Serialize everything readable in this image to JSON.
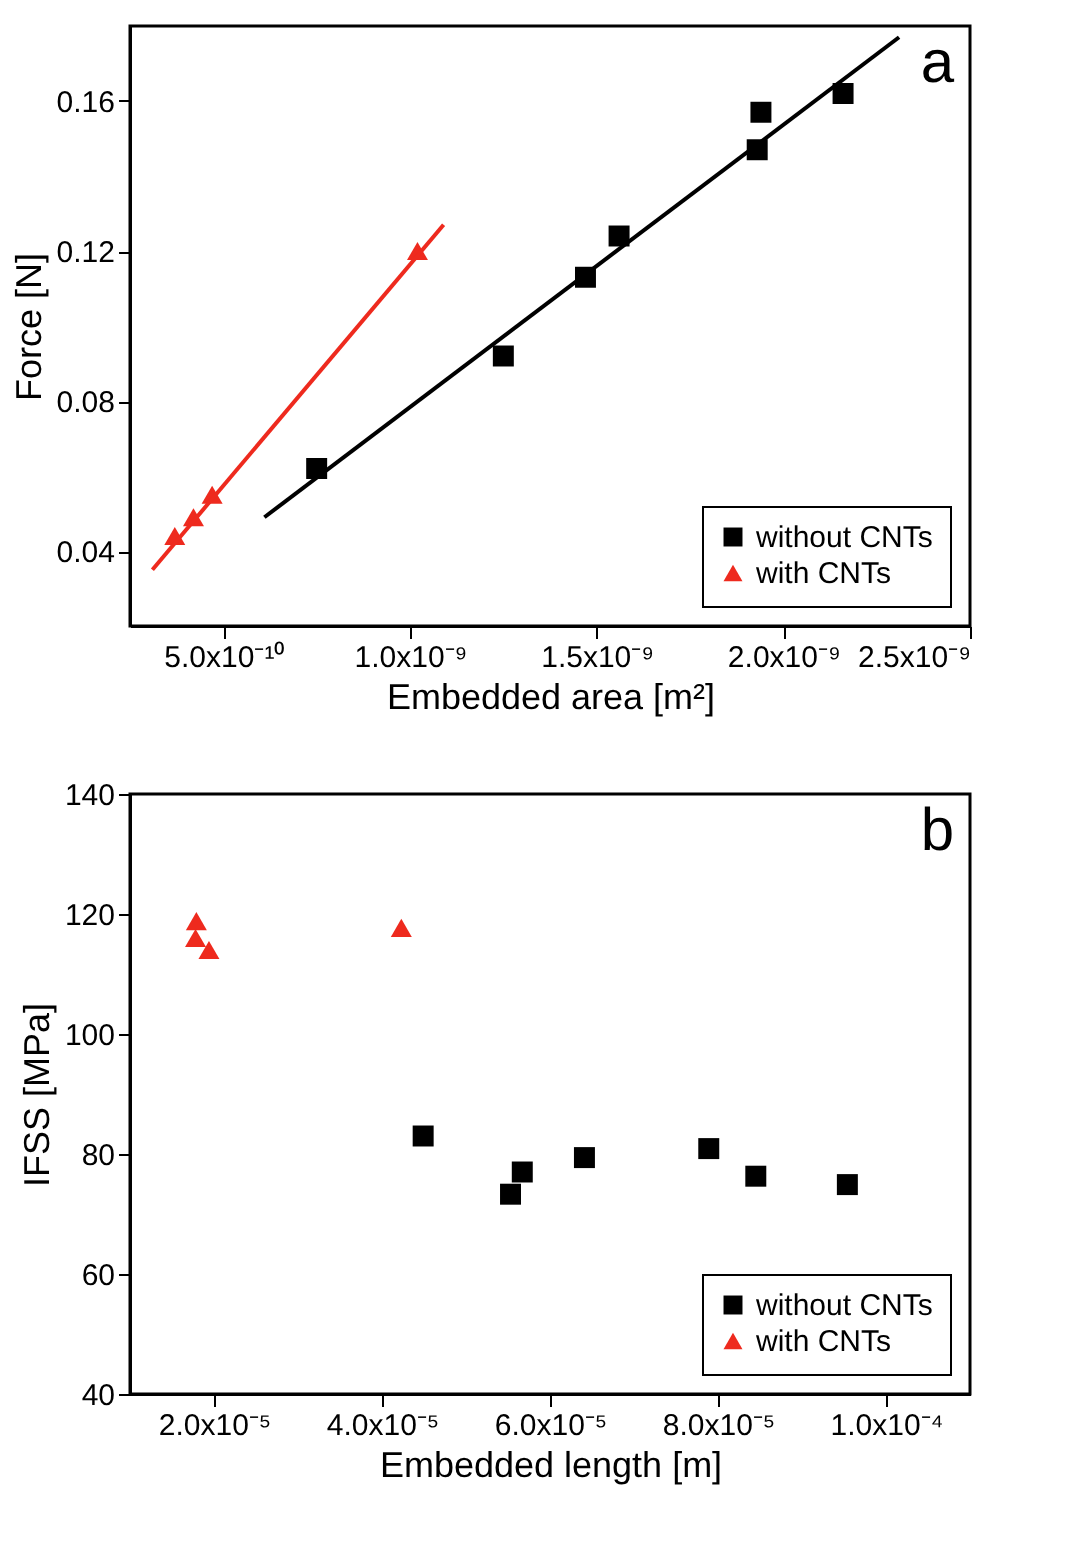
{
  "chart_data": [
    {
      "type": "scatter",
      "xlabel": "Embedded area [m²]",
      "ylabel": "Force [N]",
      "annotations": [
        "a"
      ],
      "legend": "bottom right",
      "grid": false,
      "xlim": [
        2.5e-10,
        2.5e-09
      ],
      "xticks": [
        {
          "value": 5e-10,
          "label": "5.0x10⁻¹⁰"
        },
        {
          "value": 1e-09,
          "label": "1.0x10⁻⁹"
        },
        {
          "value": 1.5e-09,
          "label": "1.5x10⁻⁹"
        },
        {
          "value": 2e-09,
          "label": "2.0x10⁻⁹"
        },
        {
          "value": 2.5e-09,
          "label": "2.5x10⁻⁹"
        }
      ],
      "ylim": [
        0.02,
        0.18
      ],
      "yticks": [
        0.04,
        0.08,
        0.12,
        0.16
      ],
      "series": [
        {
          "name": "without CNTs",
          "marker": "square",
          "color": "#000000",
          "x": [
            7.5e-10,
            1.25e-09,
            1.47e-09,
            1.56e-09,
            1.93e-09,
            1.94e-09,
            2.16e-09
          ],
          "values": [
            0.062,
            0.092,
            0.113,
            0.124,
            0.147,
            0.157,
            0.162
          ]
        },
        {
          "name": "with CNTs",
          "marker": "triangle",
          "color": "#ee2a1e",
          "x": [
            3.7e-10,
            4.2e-10,
            4.7e-10,
            1.02e-09
          ],
          "values": [
            0.044,
            0.049,
            0.055,
            0.12
          ]
        },
        {
          "type": "line",
          "color": "#000000",
          "x": [
            6.1e-10,
            2.31e-09
          ],
          "values": [
            0.049,
            0.177
          ]
        },
        {
          "type": "line",
          "color": "#ee2a1e",
          "x": [
            3.1e-10,
            1.09e-09
          ],
          "values": [
            0.035,
            0.127
          ]
        }
      ]
    },
    {
      "type": "scatter",
      "xlabel": "Embedded length [m]",
      "ylabel": "IFSS [MPa]",
      "annotations": [
        "b"
      ],
      "legend": "bottom right",
      "grid": false,
      "xlim": [
        1e-05,
        0.00011
      ],
      "xticks": [
        {
          "value": 2e-05,
          "label": "2.0x10⁻⁵"
        },
        {
          "value": 4e-05,
          "label": "4.0x10⁻⁵"
        },
        {
          "value": 6e-05,
          "label": "6.0x10⁻⁵"
        },
        {
          "value": 8e-05,
          "label": "8.0x10⁻⁵"
        },
        {
          "value": 0.0001,
          "label": "1.0x10⁻⁴"
        }
      ],
      "ylim": [
        40,
        140
      ],
      "yticks": [
        40,
        60,
        80,
        100,
        120,
        140
      ],
      "series": [
        {
          "name": "without CNTs",
          "marker": "square",
          "color": "#000000",
          "x": [
            4.49e-05,
            5.53e-05,
            5.67e-05,
            6.41e-05,
            7.89e-05,
            8.45e-05,
            9.54e-05
          ],
          "values": [
            83.0,
            73.3,
            77.0,
            79.4,
            80.9,
            76.3,
            74.9
          ]
        },
        {
          "name": "with CNTs",
          "marker": "triangle",
          "color": "#ee2a1e",
          "x": [
            1.79e-05,
            1.78e-05,
            1.94e-05,
            4.23e-05
          ],
          "values": [
            118.8,
            116.0,
            114.0,
            117.7
          ]
        }
      ]
    }
  ]
}
